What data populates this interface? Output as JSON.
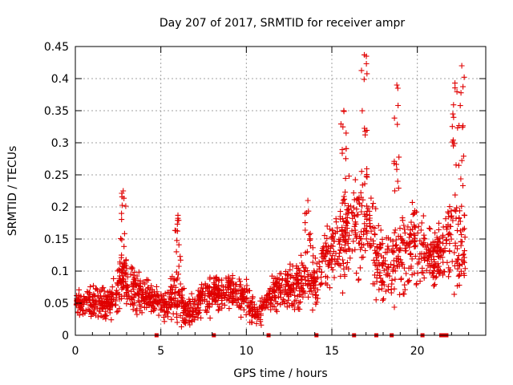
{
  "chart_data": {
    "type": "scatter",
    "title": "Day 207 of 2017, SRMTID for receiver ampr",
    "xlabel": "GPS time / hours",
    "ylabel": "SRMTID / TECUs",
    "xlim": [
      0,
      24
    ],
    "ylim": [
      0,
      0.45
    ],
    "grid": true,
    "marker": "+",
    "color": "#e00000",
    "x_ticks": [
      0,
      5,
      10,
      15,
      20
    ],
    "x_tick_labels": [
      "0",
      "5",
      "10",
      "15",
      "20"
    ],
    "y_ticks": [
      0,
      0.05,
      0.1,
      0.15,
      0.2,
      0.25,
      0.3,
      0.35,
      0.4,
      0.45
    ],
    "y_tick_labels": [
      "0",
      "0.05",
      "0.1",
      "0.15",
      "0.2",
      "0.25",
      "0.3",
      "0.35",
      "0.4",
      "0.45"
    ],
    "data_gaps_at_zero": [
      4.75,
      8.1,
      11.3,
      14.1,
      16.3,
      17.6,
      18.5,
      20.3,
      21.4,
      21.6,
      21.7
    ],
    "envelope": [
      {
        "x": 0.0,
        "y": 0.055,
        "spread": 0.03
      },
      {
        "x": 1.0,
        "y": 0.05,
        "spread": 0.03
      },
      {
        "x": 2.0,
        "y": 0.05,
        "spread": 0.035
      },
      {
        "x": 2.8,
        "y": 0.09,
        "spread": 0.06
      },
      {
        "x": 3.5,
        "y": 0.07,
        "spread": 0.05
      },
      {
        "x": 4.5,
        "y": 0.06,
        "spread": 0.04
      },
      {
        "x": 5.2,
        "y": 0.045,
        "spread": 0.03
      },
      {
        "x": 6.0,
        "y": 0.07,
        "spread": 0.06
      },
      {
        "x": 6.5,
        "y": 0.03,
        "spread": 0.03
      },
      {
        "x": 7.5,
        "y": 0.06,
        "spread": 0.04
      },
      {
        "x": 9.0,
        "y": 0.07,
        "spread": 0.04
      },
      {
        "x": 10.0,
        "y": 0.06,
        "spread": 0.045
      },
      {
        "x": 10.6,
        "y": 0.03,
        "spread": 0.025
      },
      {
        "x": 11.5,
        "y": 0.065,
        "spread": 0.04
      },
      {
        "x": 13.0,
        "y": 0.08,
        "spread": 0.05
      },
      {
        "x": 14.0,
        "y": 0.09,
        "spread": 0.06
      },
      {
        "x": 15.0,
        "y": 0.13,
        "spread": 0.08
      },
      {
        "x": 16.0,
        "y": 0.16,
        "spread": 0.1
      },
      {
        "x": 17.0,
        "y": 0.17,
        "spread": 0.12
      },
      {
        "x": 18.0,
        "y": 0.1,
        "spread": 0.07
      },
      {
        "x": 19.0,
        "y": 0.12,
        "spread": 0.09
      },
      {
        "x": 20.0,
        "y": 0.14,
        "spread": 0.09
      },
      {
        "x": 21.0,
        "y": 0.12,
        "spread": 0.05
      },
      {
        "x": 22.0,
        "y": 0.16,
        "spread": 0.12
      },
      {
        "x": 22.8,
        "y": 0.13,
        "spread": 0.09
      }
    ],
    "peaks": [
      {
        "x": 2.8,
        "y": 0.225
      },
      {
        "x": 6.0,
        "y": 0.187
      },
      {
        "x": 13.6,
        "y": 0.21
      },
      {
        "x": 15.7,
        "y": 0.35
      },
      {
        "x": 16.9,
        "y": 0.437
      },
      {
        "x": 18.8,
        "y": 0.39
      },
      {
        "x": 22.6,
        "y": 0.42
      },
      {
        "x": 22.2,
        "y": 0.393
      }
    ]
  }
}
